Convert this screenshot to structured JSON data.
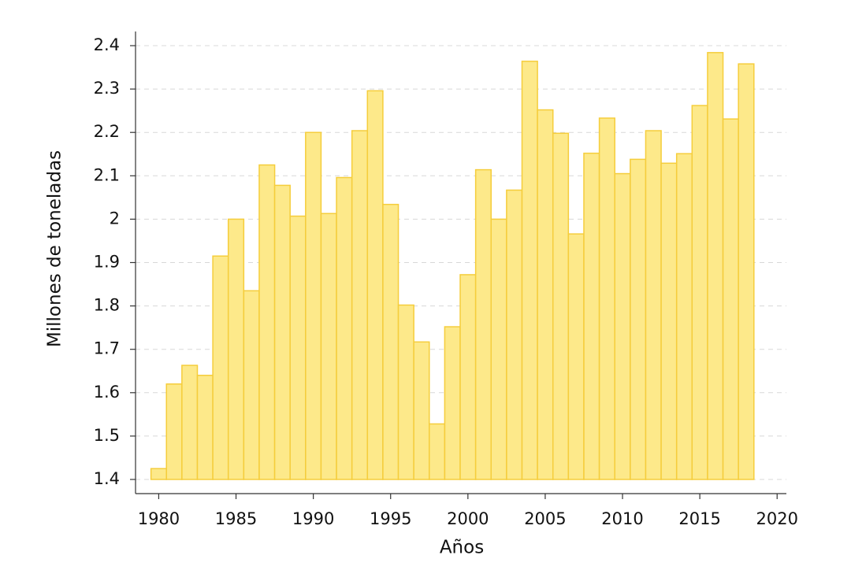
{
  "chart_data": {
    "type": "bar",
    "x": [
      1980,
      1981,
      1982,
      1983,
      1984,
      1985,
      1986,
      1987,
      1988,
      1989,
      1990,
      1991,
      1992,
      1993,
      1994,
      1995,
      1996,
      1997,
      1998,
      1999,
      2000,
      2001,
      2002,
      2003,
      2004,
      2005,
      2006,
      2007,
      2008,
      2009,
      2010,
      2011,
      2012,
      2013,
      2014,
      2015,
      2016,
      2017,
      2018
    ],
    "values": [
      1.425,
      1.62,
      1.663,
      1.64,
      1.915,
      2.0,
      1.835,
      2.125,
      2.078,
      2.007,
      2.2,
      2.013,
      2.096,
      2.204,
      2.296,
      2.034,
      1.802,
      1.717,
      1.528,
      1.752,
      1.872,
      2.114,
      2.0,
      2.067,
      2.364,
      2.252,
      2.198,
      1.966,
      2.152,
      2.233,
      2.105,
      2.138,
      2.204,
      2.129,
      2.151,
      2.262,
      2.384,
      2.231,
      2.358
    ],
    "color": "#fde98a",
    "edge_color": "#f5cd3c",
    "xlabel": "Años",
    "ylabel": "Millones de toneladas",
    "xlim": [
      1978.5,
      2020.6
    ],
    "xticks": [
      1980,
      1985,
      1990,
      1995,
      2000,
      2005,
      2010,
      2015,
      2020
    ],
    "ylim": [
      1.4,
      2.4
    ],
    "yticks": [
      1.4,
      1.5,
      1.6,
      1.7,
      1.8,
      1.9,
      2,
      2.1,
      2.2,
      2.3,
      2.4
    ],
    "grid": true
  }
}
